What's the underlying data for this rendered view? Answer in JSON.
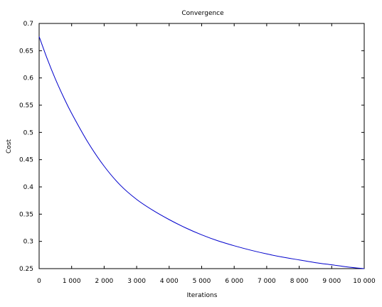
{
  "chart_data": {
    "type": "line",
    "title": "Convergence",
    "xlabel": "Iterations",
    "ylabel": "Cost",
    "xlim": [
      0,
      10000
    ],
    "ylim": [
      0.25,
      0.7
    ],
    "grid": false,
    "x_ticks": [
      0,
      1000,
      2000,
      3000,
      4000,
      5000,
      6000,
      7000,
      8000,
      9000,
      10000
    ],
    "x_tick_labels": [
      "0",
      "1 000",
      "2 000",
      "3 000",
      "4 000",
      "5 000",
      "6 000",
      "7 000",
      "8 000",
      "9 000",
      "10 000"
    ],
    "y_ticks": [
      0.25,
      0.3,
      0.35,
      0.4,
      0.45,
      0.5,
      0.55,
      0.6,
      0.65,
      0.7
    ],
    "y_tick_labels": [
      "0.25",
      "0.3",
      "0.35",
      "0.4",
      "0.45",
      "0.5",
      "0.55",
      "0.6",
      "0.65",
      "0.7"
    ],
    "series": [
      {
        "color": "#0000cc",
        "x": [
          0,
          250,
          500,
          750,
          1000,
          1500,
          2000,
          2500,
          3000,
          3500,
          4000,
          4500,
          5000,
          5500,
          6000,
          6500,
          7000,
          7500,
          8000,
          8500,
          9000,
          9500,
          10000
        ],
        "y": [
          0.676,
          0.635,
          0.598,
          0.565,
          0.535,
          0.482,
          0.438,
          0.403,
          0.377,
          0.357,
          0.34,
          0.325,
          0.312,
          0.301,
          0.292,
          0.284,
          0.277,
          0.271,
          0.266,
          0.261,
          0.257,
          0.253,
          0.25
        ]
      }
    ]
  }
}
